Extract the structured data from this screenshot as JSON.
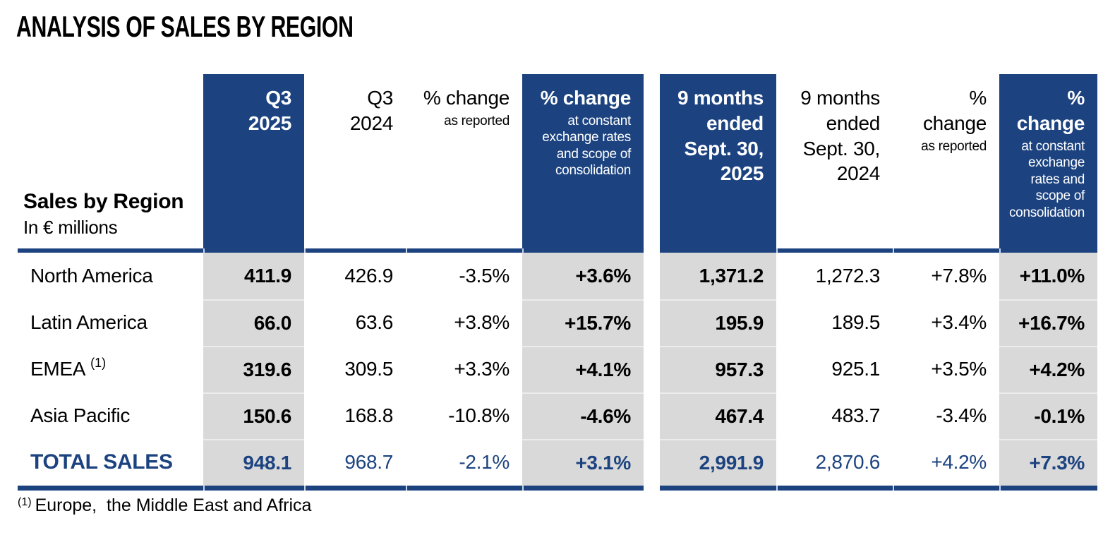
{
  "title": "ANALYSIS OF SALES BY REGION",
  "colors": {
    "accent_blue": "#1C4380",
    "column_gray": "#D9D9D9"
  },
  "table": {
    "label_header": {
      "line1": "Sales by Region",
      "line2": "In € millions"
    },
    "headers": [
      {
        "big": "Q3\n2025",
        "small": ""
      },
      {
        "big": "Q3\n2024",
        "small": ""
      },
      {
        "big": "% change",
        "small": "as reported"
      },
      {
        "big": "% change",
        "small": "at constant\nexchange rates\nand scope of\nconsolidation"
      },
      {
        "big": "9 months\nended\nSept. 30,\n2025",
        "small": ""
      },
      {
        "big": "9 months\nended\nSept. 30,\n2024",
        "small": ""
      },
      {
        "big": "%\nchange",
        "small": "as reported"
      },
      {
        "big": "%\nchange",
        "small": "at constant\nexchange\nrates and\nscope of\nconsolidation"
      }
    ],
    "rows": [
      {
        "label": "North America",
        "q3_2025": "411.9",
        "q3_2024": "426.9",
        "q3_rep": "-3.5%",
        "q3_cer": "+3.6%",
        "m9_2025": "1,371.2",
        "m9_2024": "1,272.3",
        "m9_rep": "+7.8%",
        "m9_cer": "+11.0%"
      },
      {
        "label": "Latin America",
        "q3_2025": "66.0",
        "q3_2024": "63.6",
        "q3_rep": "+3.8%",
        "q3_cer": "+15.7%",
        "m9_2025": "195.9",
        "m9_2024": "189.5",
        "m9_rep": "+3.4%",
        "m9_cer": "+16.7%"
      },
      {
        "label": "EMEA",
        "label_sup": "(1)",
        "q3_2025": "319.6",
        "q3_2024": "309.5",
        "q3_rep": "+3.3%",
        "q3_cer": "+4.1%",
        "m9_2025": "957.3",
        "m9_2024": "925.1",
        "m9_rep": "+3.5%",
        "m9_cer": "+4.2%"
      },
      {
        "label": "Asia Pacific",
        "q3_2025": "150.6",
        "q3_2024": "168.8",
        "q3_rep": "-10.8%",
        "q3_cer": "-4.6%",
        "m9_2025": "467.4",
        "m9_2024": "483.7",
        "m9_rep": "-3.4%",
        "m9_cer": "-0.1%"
      },
      {
        "label": "TOTAL SALES",
        "q3_2025": "948.1",
        "q3_2024": "968.7",
        "q3_rep": "-2.1%",
        "q3_cer": "+3.1%",
        "m9_2025": "2,991.9",
        "m9_2024": "2,870.6",
        "m9_rep": "+4.2%",
        "m9_cer": "+7.3%"
      }
    ]
  },
  "footnote": {
    "sup": "(1)",
    "text": "Europe,  the Middle East and Africa"
  }
}
